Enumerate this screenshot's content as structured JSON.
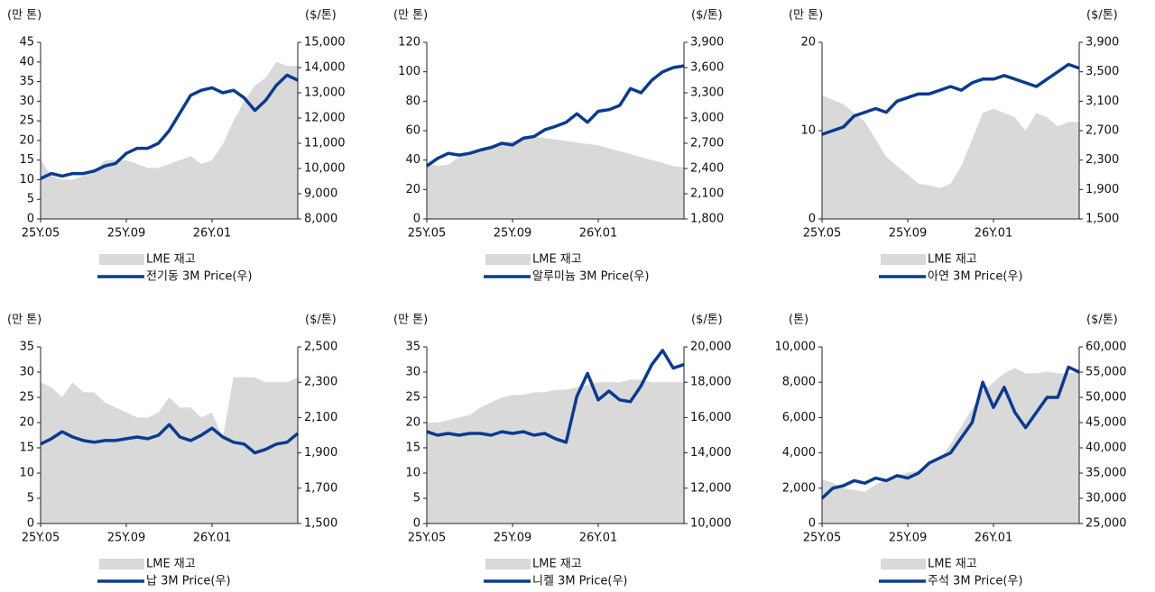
{
  "chart_data": [
    {
      "type": "combo",
      "y_label": "(만 톤)",
      "y2_label": "($/톤)",
      "categories": [
        "25Y.05",
        null,
        null,
        null,
        null,
        null,
        null,
        null,
        "25Y.09",
        null,
        null,
        null,
        null,
        null,
        null,
        null,
        "26Y.01",
        null,
        null,
        null,
        null,
        null,
        null,
        null,
        null
      ],
      "series": [
        {
          "name": "LME 재고",
          "type": "area",
          "color": "#d9d9d9",
          "values": [
            15,
            11,
            10,
            10,
            11,
            12,
            15,
            15,
            15,
            14,
            13,
            13,
            14,
            15,
            16,
            14,
            15,
            19,
            25,
            30,
            34,
            36,
            40,
            39,
            39
          ]
        },
        {
          "name": "전기동 3M Price(우)",
          "type": "line",
          "axis": "y2",
          "color": "#0b3b8f",
          "values": [
            9600,
            9800,
            9700,
            9800,
            9800,
            9900,
            10100,
            10200,
            10600,
            10800,
            10800,
            11000,
            11500,
            12200,
            12900,
            13100,
            13200,
            13000,
            13100,
            12800,
            12300,
            12700,
            13300,
            13700,
            13500
          ]
        }
      ],
      "ylim": [
        0,
        45
      ],
      "yticks": [
        0,
        5,
        10,
        15,
        20,
        25,
        30,
        35,
        40,
        45
      ],
      "y2lim": [
        8000,
        15000
      ],
      "y2ticks": [
        {
          "value": 8000,
          "label": "8,000"
        },
        {
          "value": 9000,
          "label": "9,000"
        },
        {
          "value": 10000,
          "label": "10,000"
        },
        {
          "value": 11000,
          "label": "11,000"
        },
        {
          "value": 12000,
          "label": "12,000"
        },
        {
          "value": 13000,
          "label": "13,000"
        },
        {
          "value": 14000,
          "label": "14,000"
        },
        {
          "value": 15000,
          "label": "15,000"
        }
      ]
    },
    {
      "type": "combo",
      "y_label": "(만 톤)",
      "y2_label": "($/톤)",
      "categories": [
        "25Y.05",
        null,
        null,
        null,
        null,
        null,
        null,
        null,
        "25Y.09",
        null,
        null,
        null,
        null,
        null,
        null,
        null,
        "26Y.01",
        null,
        null,
        null,
        null,
        null,
        null,
        null,
        null
      ],
      "series": [
        {
          "name": "LME 재고",
          "type": "area",
          "color": "#d9d9d9",
          "values": [
            38,
            36,
            37,
            42,
            46,
            48,
            50,
            52,
            53,
            55,
            56,
            55,
            54,
            53,
            52,
            51,
            50,
            48,
            46,
            44,
            42,
            40,
            38,
            36,
            35
          ]
        },
        {
          "name": "알루미늄 3M Price(우)",
          "type": "line",
          "axis": "y2",
          "color": "#0b3b8f",
          "values": [
            2430,
            2520,
            2580,
            2560,
            2580,
            2620,
            2650,
            2700,
            2680,
            2760,
            2780,
            2860,
            2900,
            2950,
            3050,
            2950,
            3080,
            3100,
            3150,
            3350,
            3300,
            3450,
            3550,
            3600,
            3620
          ]
        }
      ],
      "ylim": [
        0,
        120
      ],
      "yticks": [
        0,
        20,
        40,
        60,
        80,
        100,
        120
      ],
      "y2lim": [
        1800,
        3900
      ],
      "y2ticks": [
        {
          "value": 1800,
          "label": "1,800"
        },
        {
          "value": 2100,
          "label": "2,100"
        },
        {
          "value": 2400,
          "label": "2,400"
        },
        {
          "value": 2700,
          "label": "2,700"
        },
        {
          "value": 3000,
          "label": "3,000"
        },
        {
          "value": 3300,
          "label": "3,300"
        },
        {
          "value": 3600,
          "label": "3,600"
        },
        {
          "value": 3900,
          "label": "3,900"
        }
      ]
    },
    {
      "type": "combo",
      "y_label": "(만 톤)",
      "y2_label": "($/톤)",
      "categories": [
        "25Y.05",
        null,
        null,
        null,
        null,
        null,
        null,
        null,
        "25Y.09",
        null,
        null,
        null,
        null,
        null,
        null,
        null,
        "26Y.01",
        null,
        null,
        null,
        null,
        null,
        null,
        null,
        null
      ],
      "series": [
        {
          "name": "LME 재고",
          "type": "area",
          "color": "#d9d9d9",
          "values": [
            14,
            13.5,
            13,
            12,
            11,
            9,
            7,
            6,
            5,
            4,
            3.8,
            3.5,
            4,
            6,
            9,
            12,
            12.5,
            12,
            11.5,
            10,
            12,
            11.5,
            10.5,
            11,
            11
          ]
        },
        {
          "name": "아연 3M Price(우)",
          "type": "line",
          "axis": "y2",
          "color": "#0b3b8f",
          "values": [
            2650,
            2700,
            2750,
            2900,
            2950,
            3000,
            2950,
            3100,
            3150,
            3200,
            3200,
            3250,
            3300,
            3250,
            3350,
            3400,
            3400,
            3450,
            3400,
            3350,
            3300,
            3400,
            3500,
            3600,
            3550
          ]
        }
      ],
      "ylim": [
        0,
        20
      ],
      "yticks": [
        0,
        10,
        20
      ],
      "y2lim": [
        1500,
        3900
      ],
      "y2ticks": [
        {
          "value": 1500,
          "label": "1,500"
        },
        {
          "value": 1900,
          "label": "1,900"
        },
        {
          "value": 2300,
          "label": "2,300"
        },
        {
          "value": 2700,
          "label": "2,700"
        },
        {
          "value": 3100,
          "label": "3,100"
        },
        {
          "value": 3500,
          "label": "3,500"
        },
        {
          "value": 3900,
          "label": "3,900"
        }
      ]
    },
    {
      "type": "combo",
      "y_label": "(만 톤)",
      "y2_label": "($/톤)",
      "categories": [
        "25Y.05",
        null,
        null,
        null,
        null,
        null,
        null,
        null,
        "25Y.09",
        null,
        null,
        null,
        null,
        null,
        null,
        null,
        "26Y.01",
        null,
        null,
        null,
        null,
        null,
        null,
        null,
        null
      ],
      "series": [
        {
          "name": "LME 재고",
          "type": "area",
          "color": "#d9d9d9",
          "values": [
            28,
            27,
            25,
            28,
            26,
            26,
            24,
            23,
            22,
            21,
            21,
            22,
            25,
            23,
            23,
            21,
            22,
            17,
            29,
            29,
            29,
            28,
            28,
            28,
            29
          ]
        },
        {
          "name": "납 3M Price(우)",
          "type": "line",
          "axis": "y2",
          "color": "#0b3b8f",
          "values": [
            1950,
            1980,
            2020,
            1990,
            1970,
            1960,
            1970,
            1970,
            1980,
            1990,
            1980,
            2000,
            2060,
            1990,
            1970,
            2000,
            2040,
            1990,
            1960,
            1950,
            1900,
            1920,
            1950,
            1960,
            2010
          ]
        }
      ],
      "ylim": [
        0,
        35
      ],
      "yticks": [
        0,
        5,
        10,
        15,
        20,
        25,
        30,
        35
      ],
      "y2lim": [
        1500,
        2500
      ],
      "y2ticks": [
        {
          "value": 1500,
          "label": "1,500"
        },
        {
          "value": 1700,
          "label": "1,700"
        },
        {
          "value": 1900,
          "label": "1,900"
        },
        {
          "value": 2100,
          "label": "2,100"
        },
        {
          "value": 2300,
          "label": "2,300"
        },
        {
          "value": 2500,
          "label": "2,500"
        }
      ]
    },
    {
      "type": "combo",
      "y_label": "(만 톤)",
      "y2_label": "($/톤)",
      "categories": [
        "25Y.05",
        null,
        null,
        null,
        null,
        null,
        null,
        null,
        "25Y.09",
        null,
        null,
        null,
        null,
        null,
        null,
        null,
        "26Y.01",
        null,
        null,
        null,
        null,
        null,
        null,
        null,
        null
      ],
      "series": [
        {
          "name": "LME 재고",
          "type": "area",
          "color": "#d9d9d9",
          "values": [
            20,
            20,
            20.5,
            21,
            21.5,
            23,
            24,
            25,
            25.5,
            25.5,
            26,
            26,
            26.5,
            26.5,
            27,
            27.5,
            28,
            28,
            28,
            28.5,
            28.5,
            28,
            28,
            28,
            28
          ]
        },
        {
          "name": "니켈 3M Price(우)",
          "type": "line",
          "axis": "y2",
          "color": "#0b3b8f",
          "values": [
            15200,
            15000,
            15100,
            15000,
            15100,
            15100,
            15000,
            15200,
            15100,
            15200,
            15000,
            15100,
            14800,
            14600,
            17200,
            18500,
            17000,
            17500,
            17000,
            16900,
            17800,
            19000,
            19800,
            18800,
            19000
          ]
        }
      ],
      "ylim": [
        0,
        35
      ],
      "yticks": [
        0,
        5,
        10,
        15,
        20,
        25,
        30,
        35
      ],
      "y2lim": [
        10000,
        20000
      ],
      "y2ticks": [
        {
          "value": 10000,
          "label": "10,000"
        },
        {
          "value": 12000,
          "label": "12,000"
        },
        {
          "value": 14000,
          "label": "14,000"
        },
        {
          "value": 16000,
          "label": "16,000"
        },
        {
          "value": 18000,
          "label": "18,000"
        },
        {
          "value": 20000,
          "label": "20,000"
        }
      ]
    },
    {
      "type": "combo",
      "y_label": "(톤)",
      "y2_label": "($/톤)",
      "categories": [
        "25Y.05",
        null,
        null,
        null,
        null,
        null,
        null,
        null,
        "25Y.09",
        null,
        null,
        null,
        null,
        null,
        null,
        null,
        "26Y.01",
        null,
        null,
        null,
        null,
        null,
        null,
        null,
        null
      ],
      "series": [
        {
          "name": "LME 재고",
          "type": "area",
          "color": "#d9d9d9",
          "values": [
            2500,
            2300,
            2000,
            1900,
            1800,
            2200,
            2500,
            2700,
            2900,
            3000,
            3400,
            3600,
            4500,
            5500,
            6500,
            7500,
            8000,
            8500,
            8800,
            8500,
            8500,
            8600,
            8500,
            8500,
            8600
          ]
        },
        {
          "name": "주석 3M Price(우)",
          "type": "line",
          "axis": "y2",
          "color": "#0b3b8f",
          "values": [
            30000,
            32000,
            32500,
            33500,
            33000,
            34000,
            33500,
            34500,
            34000,
            35000,
            37000,
            38000,
            39000,
            42000,
            45000,
            53000,
            48000,
            52000,
            47000,
            44000,
            47000,
            50000,
            50000,
            56000,
            55000
          ]
        }
      ],
      "ylim": [
        0,
        10000
      ],
      "yticks": [
        0,
        {
          "value": 2000,
          "label": "2,000"
        },
        {
          "value": 4000,
          "label": "4,000"
        },
        {
          "value": 6000,
          "label": "6,000"
        },
        {
          "value": 8000,
          "label": "8,000"
        },
        {
          "value": 10000,
          "label": "10,000"
        }
      ],
      "y2lim": [
        25000,
        60000
      ],
      "y2ticks": [
        {
          "value": 25000,
          "label": "25,000"
        },
        {
          "value": 30000,
          "label": "30,000"
        },
        {
          "value": 35000,
          "label": "35,000"
        },
        {
          "value": 40000,
          "label": "40,000"
        },
        {
          "value": 45000,
          "label": "45,000"
        },
        {
          "value": 50000,
          "label": "50,000"
        },
        {
          "value": 55000,
          "label": "55,000"
        },
        {
          "value": 60000,
          "label": "60,000"
        }
      ]
    }
  ]
}
